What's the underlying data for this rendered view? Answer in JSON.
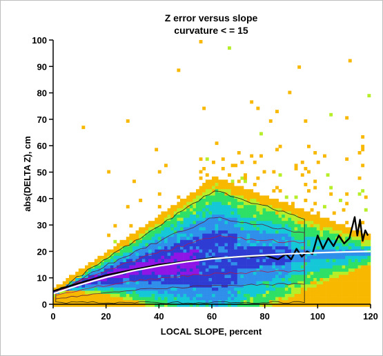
{
  "chart_data": {
    "type": "heatmap",
    "title": "Z error versus slope",
    "subtitle": "curvature < = 15",
    "xlabel": "LOCAL SLOPE, percent",
    "ylabel": "abs(DELTA Z), cm",
    "xlim": [
      0,
      120
    ],
    "ylim": [
      0,
      100
    ],
    "x_ticks": [
      "0",
      "20",
      "40",
      "60",
      "80",
      "100",
      "120"
    ],
    "y_ticks": [
      "0",
      "10",
      "20",
      "30",
      "40",
      "50",
      "60",
      "70",
      "80",
      "90",
      "100"
    ],
    "density_colors": [
      "#f8b800",
      "#b6ef2a",
      "#2ee066",
      "#15c8d8",
      "#2f8fea",
      "#2e3cd4",
      "#8f14e6"
    ],
    "series": [
      {
        "style": "black",
        "x": [
          0,
          5,
          10,
          15,
          20,
          25,
          30,
          35,
          40,
          45,
          50,
          55,
          60,
          65,
          70,
          75,
          80,
          85,
          88,
          90,
          92,
          94,
          96,
          98,
          100,
          102,
          104,
          106,
          108,
          110,
          112,
          114,
          115,
          116,
          117,
          118,
          119
        ],
        "y": [
          5,
          6.5,
          8,
          9.5,
          11,
          12,
          13,
          14,
          15,
          15.5,
          16.2,
          16.8,
          17.5,
          17.5,
          18,
          18,
          18.5,
          17,
          19,
          17,
          21,
          18,
          20,
          19,
          26,
          21,
          25,
          22,
          26,
          23,
          25,
          33,
          26,
          32,
          24,
          28,
          26
        ]
      },
      {
        "style": "white",
        "x": [
          0,
          10,
          20,
          30,
          40,
          50,
          60,
          70,
          80,
          90,
          100,
          110,
          120
        ],
        "y": [
          4,
          7.3,
          10.2,
          12.6,
          14.5,
          16,
          17.2,
          18,
          18.6,
          19.1,
          19.5,
          19.8,
          20
        ]
      }
    ]
  }
}
